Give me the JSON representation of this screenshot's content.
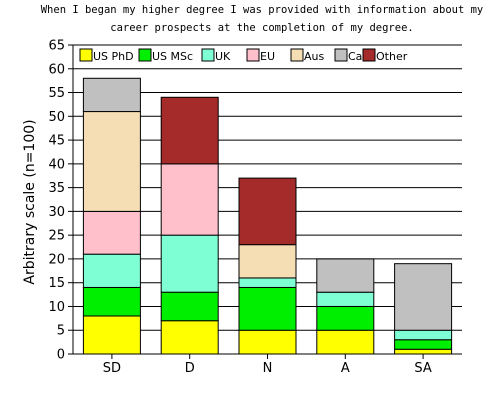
{
  "chart_data": {
    "type": "bar",
    "stacked": true,
    "title_lines": [
      "When I began my higher degree I was provided with information about my",
      "career prospects at the completion of my degree."
    ],
    "xlabel": "",
    "ylabel": "Arbitrary scale (n=100)",
    "ylim": [
      0,
      65
    ],
    "yticks": [
      0,
      5,
      10,
      15,
      20,
      25,
      30,
      35,
      40,
      45,
      50,
      55,
      60,
      65
    ],
    "grid": "horizontal",
    "legend_position": "top",
    "categories": [
      "SD",
      "D",
      "N",
      "A",
      "SA"
    ],
    "series": [
      {
        "name": "US PhD",
        "color": "#ffff00",
        "values": [
          8,
          7,
          5,
          5,
          1
        ]
      },
      {
        "name": "US MSc",
        "color": "#00ee00",
        "values": [
          6,
          6,
          9,
          5,
          2
        ]
      },
      {
        "name": "UK",
        "color": "#7fffd4",
        "values": [
          7,
          12,
          2,
          3,
          2
        ]
      },
      {
        "name": "EU",
        "color": "#ffc0cb",
        "values": [
          9,
          15,
          0,
          0,
          0
        ]
      },
      {
        "name": "Aus",
        "color": "#f5deb3",
        "values": [
          21,
          0,
          7,
          0,
          0
        ]
      },
      {
        "name": "Ca",
        "color": "#c0c0c0",
        "values": [
          7,
          0,
          0,
          7,
          14
        ]
      },
      {
        "name": "Other",
        "color": "#a52a2a",
        "values": [
          0,
          14,
          14,
          0,
          0
        ]
      }
    ]
  }
}
